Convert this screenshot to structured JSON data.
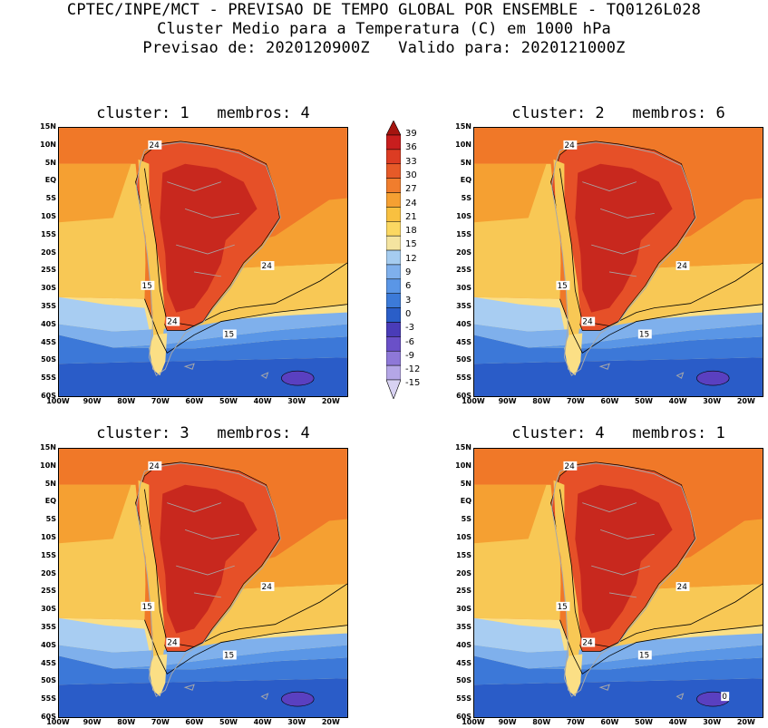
{
  "header": {
    "line1": "CPTEC/INPE/MCT - PREVISAO DE TEMPO GLOBAL POR ENSEMBLE - TQ0126L028",
    "line2": "Cluster Medio para a Temperatura (C) em 1000 hPa",
    "line3": "Previsao de: 2020120900Z   Valido para: 2020121000Z"
  },
  "panels": [
    {
      "title": "cluster: 1   membros: 4",
      "labels": [
        "24",
        "24",
        "15",
        "24",
        "15"
      ]
    },
    {
      "title": "cluster: 2   membros: 6",
      "labels": [
        "24",
        "24",
        "15",
        "24",
        "15"
      ]
    },
    {
      "title": "cluster: 3   membros: 4",
      "labels": [
        "24",
        "24",
        "15",
        "24",
        "15"
      ]
    },
    {
      "title": "cluster: 4   membros: 1",
      "labels": [
        "24",
        "24",
        "15",
        "24",
        "15",
        "0"
      ]
    }
  ],
  "axes": {
    "lat_ticks": [
      "15N",
      "10N",
      "5N",
      "EQ",
      "5S",
      "10S",
      "15S",
      "20S",
      "25S",
      "30S",
      "35S",
      "40S",
      "45S",
      "50S",
      "55S",
      "60S"
    ],
    "lon_ticks": [
      "100W",
      "90W",
      "80W",
      "70W",
      "60W",
      "50W",
      "40W",
      "30W",
      "20W"
    ]
  },
  "colorbar": {
    "labels": [
      "39",
      "36",
      "33",
      "30",
      "27",
      "24",
      "21",
      "18",
      "15",
      "12",
      "9",
      "6",
      "3",
      "0",
      "-3",
      "-6",
      "-9",
      "-12",
      "-15"
    ],
    "colors": [
      "#a5140f",
      "#c81e1e",
      "#dc3c23",
      "#e65a28",
      "#f07d2d",
      "#f5a032",
      "#f8c040",
      "#fbd862",
      "#f4e4a0",
      "#a5ccf0",
      "#7fb0ec",
      "#5a96e6",
      "#3c7ad8",
      "#2a5ec8",
      "#4a3cb8",
      "#6a50c8",
      "#8e78d8",
      "#b4a6e6",
      "#d8d2f2"
    ]
  },
  "map_colors": {
    "t30": "#c8281e",
    "t27": "#e65028",
    "t24": "#f07828",
    "t21": "#f5a032",
    "t18": "#f8c855",
    "t15": "#fbdf85",
    "t12": "#a8cdf2",
    "t9": "#7fb0ec",
    "t6": "#5a96e6",
    "t3": "#3c78d8",
    "t0": "#2a5cc8",
    "tm3": "#5a40c0",
    "border": "#a8a8a8"
  }
}
